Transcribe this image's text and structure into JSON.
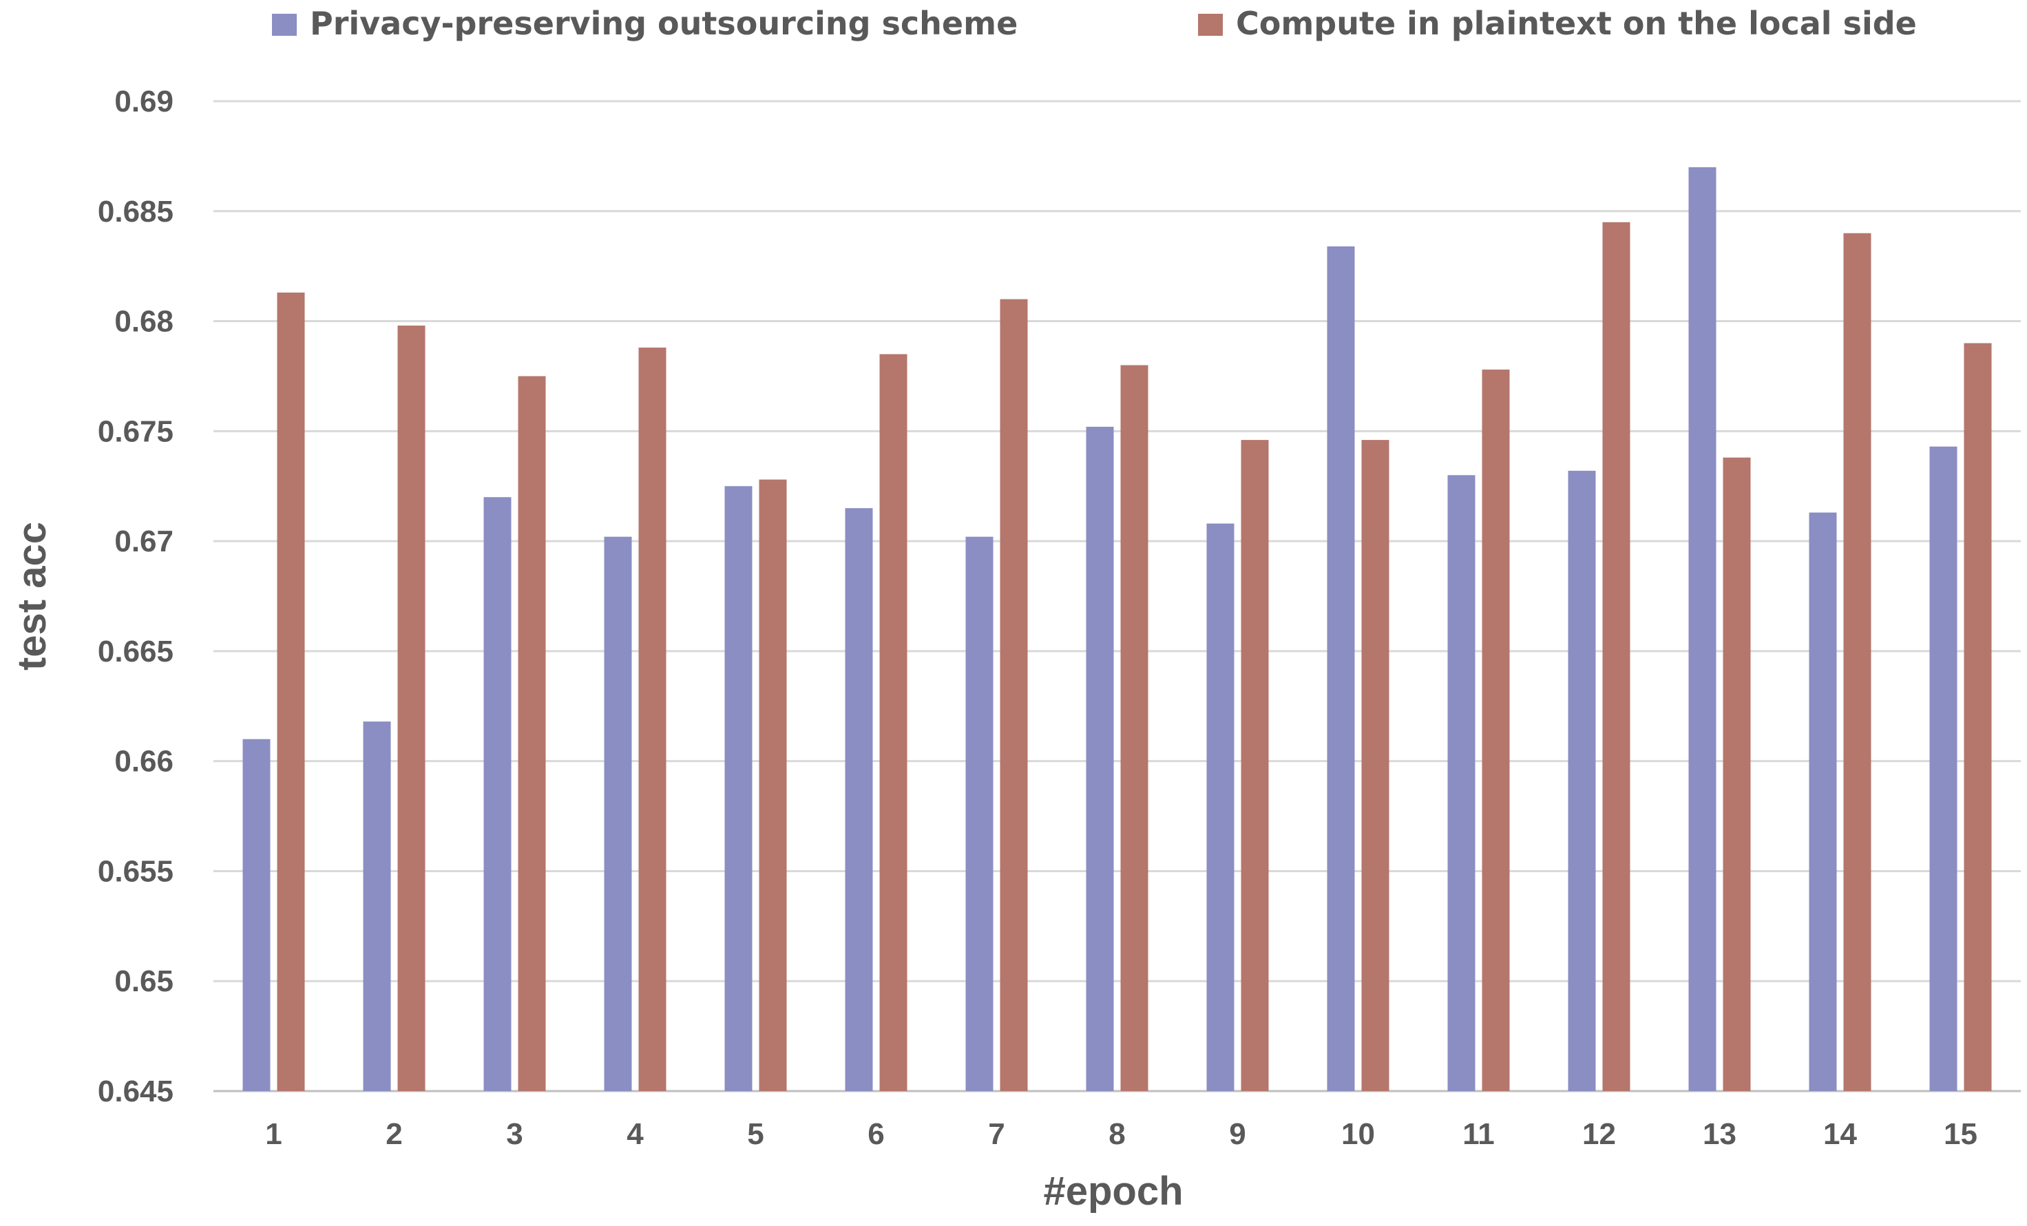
{
  "chart_data": {
    "type": "bar",
    "title": "",
    "xlabel": "#epoch",
    "ylabel": "test acc",
    "ylim": [
      0.645,
      0.69
    ],
    "yticks": [
      "0.645",
      "0.65",
      "0.655",
      "0.66",
      "0.665",
      "0.67",
      "0.675",
      "0.68",
      "0.685",
      "0.69"
    ],
    "grid": true,
    "legend_position": "top",
    "categories": [
      "1",
      "2",
      "3",
      "4",
      "5",
      "6",
      "7",
      "8",
      "9",
      "10",
      "11",
      "12",
      "13",
      "14",
      "15"
    ],
    "series": [
      {
        "name": "Privacy-preserving outsourcing  scheme",
        "color": "#8b8ec3",
        "values": [
          0.661,
          0.6618,
          0.672,
          0.6702,
          0.6725,
          0.6715,
          0.6702,
          0.6752,
          0.6708,
          0.6834,
          0.673,
          0.6732,
          0.687,
          0.6713,
          0.6743
        ]
      },
      {
        "name": "Compute in plaintext on the local side",
        "color": "#b5766c",
        "values": [
          0.6813,
          0.6798,
          0.6775,
          0.6788,
          0.6728,
          0.6785,
          0.681,
          0.678,
          0.6746,
          0.6746,
          0.6778,
          0.6845,
          0.6738,
          0.684,
          0.679
        ]
      }
    ]
  }
}
